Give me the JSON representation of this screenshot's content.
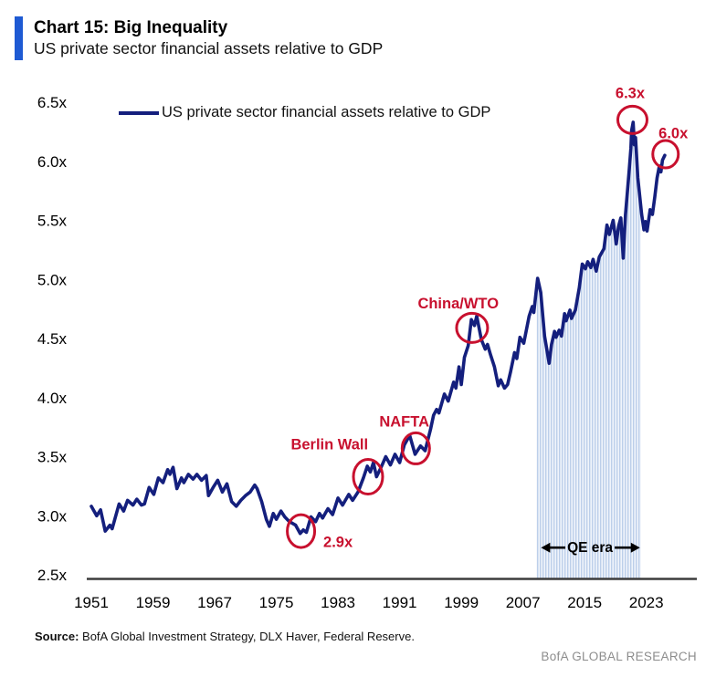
{
  "header": {
    "title": "Chart 15: Big Inequality",
    "subtitle": "US private sector financial assets relative to GDP"
  },
  "legend": {
    "label": "US private sector financial assets relative to GDP"
  },
  "footer": {
    "source_label": "Source:",
    "source_text": " BofA Global Investment Strategy, DLX Haver, Federal Reserve.",
    "brand": "BofA GLOBAL RESEARCH"
  },
  "colors": {
    "accent_blue": "#1e5ad3",
    "line_navy": "#141f7d",
    "annotation_red": "#c8102e",
    "qe_stripe": "#bccfea",
    "qe_background": "#f0f4fb",
    "axis": "#3c3c3c",
    "brand_gray": "#8d8d8d"
  },
  "chart_data": {
    "type": "line",
    "title": "US private sector financial assets relative to GDP",
    "xlabel": "",
    "ylabel": "",
    "xlim": [
      1950.4,
      2029.6
    ],
    "ylim": [
      2.5,
      6.5
    ],
    "grid": false,
    "legend_position": "top-left",
    "x_ticks": [
      {
        "label": "1951",
        "value": 1951
      },
      {
        "label": "1959",
        "value": 1959
      },
      {
        "label": "1967",
        "value": 1967
      },
      {
        "label": "1975",
        "value": 1975
      },
      {
        "label": "1983",
        "value": 1983
      },
      {
        "label": "1991",
        "value": 1991
      },
      {
        "label": "1999",
        "value": 1999
      },
      {
        "label": "2007",
        "value": 2007
      },
      {
        "label": "2015",
        "value": 2015
      },
      {
        "label": "2023",
        "value": 2023
      }
    ],
    "y_ticks": [
      {
        "label": "6.5x",
        "value": 6.5
      },
      {
        "label": "6.0x",
        "value": 6.0
      },
      {
        "label": "5.5x",
        "value": 5.5
      },
      {
        "label": "5.0x",
        "value": 5.0
      },
      {
        "label": "4.5x",
        "value": 4.5
      },
      {
        "label": "4.0x",
        "value": 4.0
      },
      {
        "label": "3.5x",
        "value": 3.5
      },
      {
        "label": "3.0x",
        "value": 3.0
      },
      {
        "label": "2.5x",
        "value": 2.5
      }
    ],
    "series": [
      {
        "name": "US private sector financial assets relative to GDP",
        "points": [
          [
            1951.0,
            3.08
          ],
          [
            1951.7,
            3.0
          ],
          [
            1952.2,
            3.05
          ],
          [
            1952.8,
            2.87
          ],
          [
            1953.4,
            2.92
          ],
          [
            1953.7,
            2.89
          ],
          [
            1954.6,
            3.1
          ],
          [
            1955.2,
            3.04
          ],
          [
            1955.7,
            3.13
          ],
          [
            1956.4,
            3.09
          ],
          [
            1956.9,
            3.14
          ],
          [
            1957.5,
            3.09
          ],
          [
            1957.9,
            3.1
          ],
          [
            1958.5,
            3.24
          ],
          [
            1959.1,
            3.18
          ],
          [
            1959.7,
            3.32
          ],
          [
            1960.3,
            3.28
          ],
          [
            1960.9,
            3.39
          ],
          [
            1961.2,
            3.35
          ],
          [
            1961.6,
            3.41
          ],
          [
            1962.1,
            3.23
          ],
          [
            1962.7,
            3.32
          ],
          [
            1963.0,
            3.28
          ],
          [
            1963.6,
            3.35
          ],
          [
            1964.2,
            3.31
          ],
          [
            1964.7,
            3.35
          ],
          [
            1965.3,
            3.3
          ],
          [
            1965.9,
            3.34
          ],
          [
            1966.2,
            3.17
          ],
          [
            1966.8,
            3.24
          ],
          [
            1967.4,
            3.3
          ],
          [
            1968.0,
            3.2
          ],
          [
            1968.6,
            3.27
          ],
          [
            1969.2,
            3.12
          ],
          [
            1969.8,
            3.08
          ],
          [
            1970.4,
            3.13
          ],
          [
            1971.0,
            3.17
          ],
          [
            1971.6,
            3.2
          ],
          [
            1972.2,
            3.26
          ],
          [
            1972.5,
            3.23
          ],
          [
            1973.1,
            3.12
          ],
          [
            1973.7,
            2.97
          ],
          [
            1974.1,
            2.91
          ],
          [
            1974.6,
            3.02
          ],
          [
            1975.0,
            2.97
          ],
          [
            1975.6,
            3.04
          ],
          [
            1976.1,
            2.99
          ],
          [
            1976.7,
            2.95
          ],
          [
            1977.5,
            2.92
          ],
          [
            1978.1,
            2.85
          ],
          [
            1978.5,
            2.88
          ],
          [
            1978.9,
            2.86
          ],
          [
            1979.5,
            2.99
          ],
          [
            1980.1,
            2.95
          ],
          [
            1980.6,
            3.02
          ],
          [
            1981.0,
            2.98
          ],
          [
            1981.7,
            3.06
          ],
          [
            1982.3,
            3.01
          ],
          [
            1983.0,
            3.15
          ],
          [
            1983.6,
            3.09
          ],
          [
            1984.4,
            3.18
          ],
          [
            1984.9,
            3.13
          ],
          [
            1985.6,
            3.2
          ],
          [
            1986.3,
            3.32
          ],
          [
            1986.8,
            3.42
          ],
          [
            1987.2,
            3.37
          ],
          [
            1987.6,
            3.45
          ],
          [
            1988.0,
            3.33
          ],
          [
            1988.6,
            3.41
          ],
          [
            1989.2,
            3.5
          ],
          [
            1989.8,
            3.43
          ],
          [
            1990.4,
            3.52
          ],
          [
            1991.0,
            3.45
          ],
          [
            1991.6,
            3.6
          ],
          [
            1992.3,
            3.68
          ],
          [
            1993.0,
            3.52
          ],
          [
            1993.7,
            3.59
          ],
          [
            1994.3,
            3.55
          ],
          [
            1995.0,
            3.73
          ],
          [
            1995.4,
            3.85
          ],
          [
            1995.8,
            3.9
          ],
          [
            1996.1,
            3.87
          ],
          [
            1996.8,
            4.03
          ],
          [
            1997.3,
            3.97
          ],
          [
            1998.0,
            4.13
          ],
          [
            1998.3,
            4.08
          ],
          [
            1998.7,
            4.26
          ],
          [
            1999.0,
            4.11
          ],
          [
            1999.4,
            4.34
          ],
          [
            1999.9,
            4.44
          ],
          [
            2000.3,
            4.66
          ],
          [
            2000.7,
            4.61
          ],
          [
            2001.0,
            4.69
          ],
          [
            2001.6,
            4.49
          ],
          [
            2002.1,
            4.41
          ],
          [
            2002.4,
            4.45
          ],
          [
            2002.8,
            4.36
          ],
          [
            2003.3,
            4.26
          ],
          [
            2003.8,
            4.1
          ],
          [
            2004.1,
            4.15
          ],
          [
            2004.6,
            4.08
          ],
          [
            2005.0,
            4.11
          ],
          [
            2005.4,
            4.22
          ],
          [
            2005.9,
            4.38
          ],
          [
            2006.2,
            4.33
          ],
          [
            2006.6,
            4.51
          ],
          [
            2007.1,
            4.46
          ],
          [
            2007.8,
            4.69
          ],
          [
            2008.2,
            4.77
          ],
          [
            2008.4,
            4.72
          ],
          [
            2008.9,
            5.01
          ],
          [
            2009.3,
            4.89
          ],
          [
            2009.8,
            4.52
          ],
          [
            2010.4,
            4.29
          ],
          [
            2010.7,
            4.45
          ],
          [
            2011.1,
            4.56
          ],
          [
            2011.3,
            4.51
          ],
          [
            2011.7,
            4.57
          ],
          [
            2012.0,
            4.52
          ],
          [
            2012.4,
            4.71
          ],
          [
            2012.6,
            4.65
          ],
          [
            2013.1,
            4.74
          ],
          [
            2013.3,
            4.67
          ],
          [
            2013.8,
            4.74
          ],
          [
            2014.3,
            4.93
          ],
          [
            2014.7,
            5.13
          ],
          [
            2015.1,
            5.09
          ],
          [
            2015.4,
            5.15
          ],
          [
            2015.8,
            5.1
          ],
          [
            2016.1,
            5.17
          ],
          [
            2016.5,
            5.07
          ],
          [
            2016.9,
            5.19
          ],
          [
            2017.5,
            5.26
          ],
          [
            2017.9,
            5.46
          ],
          [
            2018.2,
            5.38
          ],
          [
            2018.7,
            5.5
          ],
          [
            2019.1,
            5.3
          ],
          [
            2019.4,
            5.45
          ],
          [
            2019.7,
            5.52
          ],
          [
            2020.0,
            5.18
          ],
          [
            2020.3,
            5.55
          ],
          [
            2020.6,
            5.78
          ],
          [
            2020.8,
            5.94
          ],
          [
            2021.0,
            6.11
          ],
          [
            2021.1,
            6.26
          ],
          [
            2021.3,
            6.33
          ],
          [
            2021.45,
            6.14
          ],
          [
            2021.6,
            6.2
          ],
          [
            2021.9,
            5.86
          ],
          [
            2022.4,
            5.55
          ],
          [
            2022.7,
            5.42
          ],
          [
            2022.9,
            5.49
          ],
          [
            2023.1,
            5.41
          ],
          [
            2023.5,
            5.59
          ],
          [
            2023.8,
            5.55
          ],
          [
            2024.1,
            5.7
          ],
          [
            2024.4,
            5.86
          ],
          [
            2024.7,
            5.96
          ],
          [
            2024.9,
            5.91
          ],
          [
            2025.1,
            6.01
          ],
          [
            2025.4,
            6.05
          ]
        ]
      }
    ],
    "qe_era": {
      "label": "QE era",
      "start": 2008.75,
      "end": 2022.3,
      "label_at": [
        2015.7,
        2.73
      ]
    },
    "annotations": [
      {
        "label": "2.9x",
        "label_at": [
          1983.0,
          2.78
        ],
        "circle_at": [
          1978.2,
          2.87
        ],
        "rx": 15,
        "ry": 18
      },
      {
        "label": "Berlin Wall",
        "label_at": [
          1981.9,
          3.61
        ],
        "circle_at": [
          1986.9,
          3.33
        ],
        "rx": 16,
        "ry": 19
      },
      {
        "label": "NAFTA",
        "label_at": [
          1991.6,
          3.8
        ],
        "circle_at": [
          1993.1,
          3.57
        ],
        "rx": 15,
        "ry": 17
      },
      {
        "label": "China/WTO",
        "label_at": [
          1998.6,
          4.8
        ],
        "circle_at": [
          2000.4,
          4.59
        ],
        "rx": 17,
        "ry": 16
      },
      {
        "label": "6.3x",
        "label_at": [
          2020.9,
          6.58
        ],
        "circle_at": [
          2021.2,
          6.35
        ],
        "rx": 16,
        "ry": 15
      },
      {
        "label": "6.0x",
        "label_at": [
          2026.5,
          6.24
        ],
        "circle_at": [
          2025.5,
          6.06
        ],
        "rx": 14,
        "ry": 15
      }
    ]
  }
}
